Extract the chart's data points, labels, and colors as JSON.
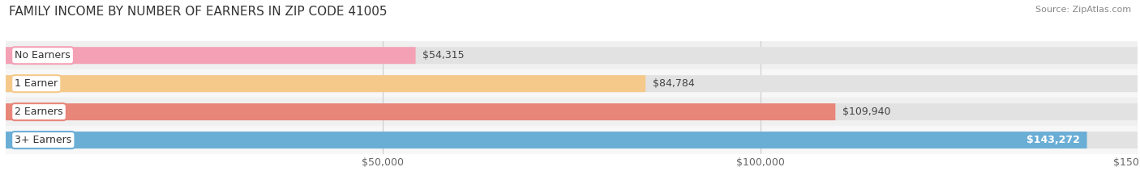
{
  "title": "FAMILY INCOME BY NUMBER OF EARNERS IN ZIP CODE 41005",
  "source": "Source: ZipAtlas.com",
  "categories": [
    "No Earners",
    "1 Earner",
    "2 Earners",
    "3+ Earners"
  ],
  "values": [
    54315,
    84784,
    109940,
    143272
  ],
  "labels": [
    "$54,315",
    "$84,784",
    "$109,940",
    "$143,272"
  ],
  "bar_colors": [
    "#f4a0b5",
    "#f5c98a",
    "#e8867a",
    "#6aaed6"
  ],
  "row_bg_colors": [
    "#f0f0f0",
    "#f7f7f7",
    "#f0f0f0",
    "#f7f7f7"
  ],
  "bar_bg_color": "#e2e2e2",
  "background_color": "#ffffff",
  "xmin": 0,
  "xmax": 150000,
  "xticks": [
    50000,
    100000,
    150000
  ],
  "xticklabels": [
    "$50,000",
    "$100,000",
    "$150,000"
  ],
  "title_fontsize": 11,
  "label_fontsize": 9,
  "value_fontsize": 9,
  "tick_fontsize": 9,
  "source_fontsize": 8
}
